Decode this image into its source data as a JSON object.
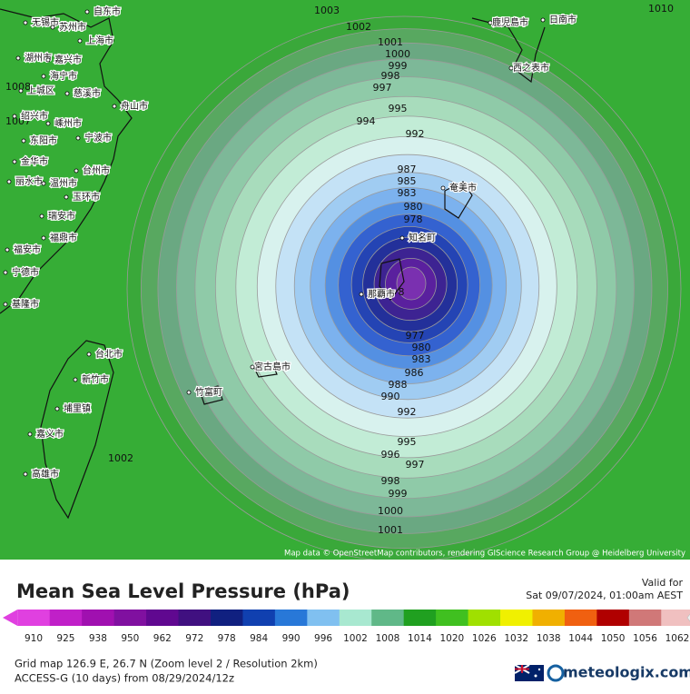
{
  "map": {
    "contour_labels": [
      1003,
      1002,
      1001,
      1000,
      999,
      998,
      997,
      995,
      994,
      992,
      987,
      985,
      983,
      980,
      978,
      977,
      980,
      983,
      986,
      988,
      990,
      992,
      995,
      996,
      997,
      998,
      999,
      1000,
      1001,
      1002,
      1010,
      1008,
      1007,
      8
    ],
    "place_labels": [
      "无锡市",
      "自东市",
      "苏州市",
      "上海市",
      "湖州市",
      "嘉兴市",
      "海宁市",
      "上城区",
      "慈溪市",
      "舟山市",
      "绍兴市",
      "嵊州市",
      "宁波市",
      "东阳市",
      "金华市",
      "台州市",
      "丽水市",
      "温州市",
      "玉环市",
      "瑞安市",
      "福鼎市",
      "福安市",
      "宁德市",
      "基隆市",
      "台北市",
      "新竹市",
      "埔里镇",
      "嘉义市",
      "高雄市",
      "鹿児島市",
      "日南市",
      "西之表市",
      "奄美市",
      "知名町",
      "那覇市",
      "宮古島市",
      "竹富町"
    ],
    "attribution": "Map data © OpenStreetMap contributors, rendering GIScience Research Group @ Heidelberg University"
  },
  "legend": {
    "title": "Mean Sea Level Pressure (hPa)",
    "valid_label": "Valid for",
    "valid_time": "Sat 09/07/2024, 01:00am AEST",
    "ticks": [
      910,
      925,
      938,
      950,
      962,
      972,
      978,
      984,
      990,
      996,
      1002,
      1008,
      1014,
      1020,
      1026,
      1032,
      1038,
      1044,
      1050,
      1056,
      1062
    ],
    "colors": [
      "#e040e0",
      "#c020c8",
      "#a010b0",
      "#8010a0",
      "#600890",
      "#401080",
      "#102080",
      "#1040b0",
      "#2878d8",
      "#80c0f0",
      "#a8e8d0",
      "#60b888",
      "#20a020",
      "#40c020",
      "#a0e000",
      "#f0f000",
      "#f0b000",
      "#f06010",
      "#b00000",
      "#d07878",
      "#f0c0c0"
    ]
  },
  "footer": {
    "grid_info": "Grid map 126.9 E, 26.7 N (Zoom level 2 / Resolution 2km)",
    "model_info": "ACCESS-G (10 days)  from  08/29/2024/12z",
    "brand": "meteologix.com"
  }
}
